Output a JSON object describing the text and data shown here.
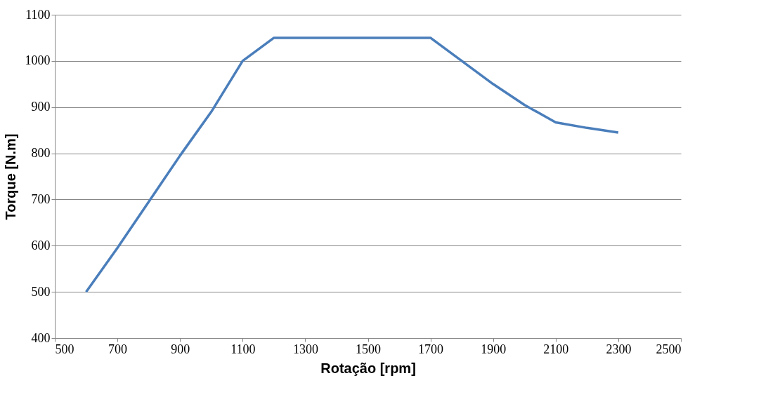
{
  "chart_data": {
    "type": "line",
    "xlabel": "Rotação [rpm]",
    "ylabel": "Torque [N.m]",
    "x": [
      600,
      700,
      800,
      900,
      1000,
      1100,
      1200,
      1300,
      1400,
      1500,
      1600,
      1700,
      1800,
      1900,
      2000,
      2100,
      2200,
      2300
    ],
    "series": [
      {
        "color": "#4a7ebb",
        "values": [
          500,
          595,
          695,
          795,
          890,
          1000,
          1050,
          1050,
          1050,
          1050,
          1050,
          1050,
          1000,
          950,
          905,
          867,
          855,
          845
        ]
      }
    ],
    "xlim": [
      500,
      2500
    ],
    "xticks": [
      500,
      700,
      900,
      1100,
      1300,
      1500,
      1700,
      1900,
      2100,
      2300,
      2500
    ],
    "ylim": [
      400,
      1100
    ],
    "yticks": [
      400,
      500,
      600,
      700,
      800,
      900,
      1000,
      1100
    ],
    "grid": "y",
    "legend": false,
    "marker": "none",
    "line_style": "solid"
  }
}
